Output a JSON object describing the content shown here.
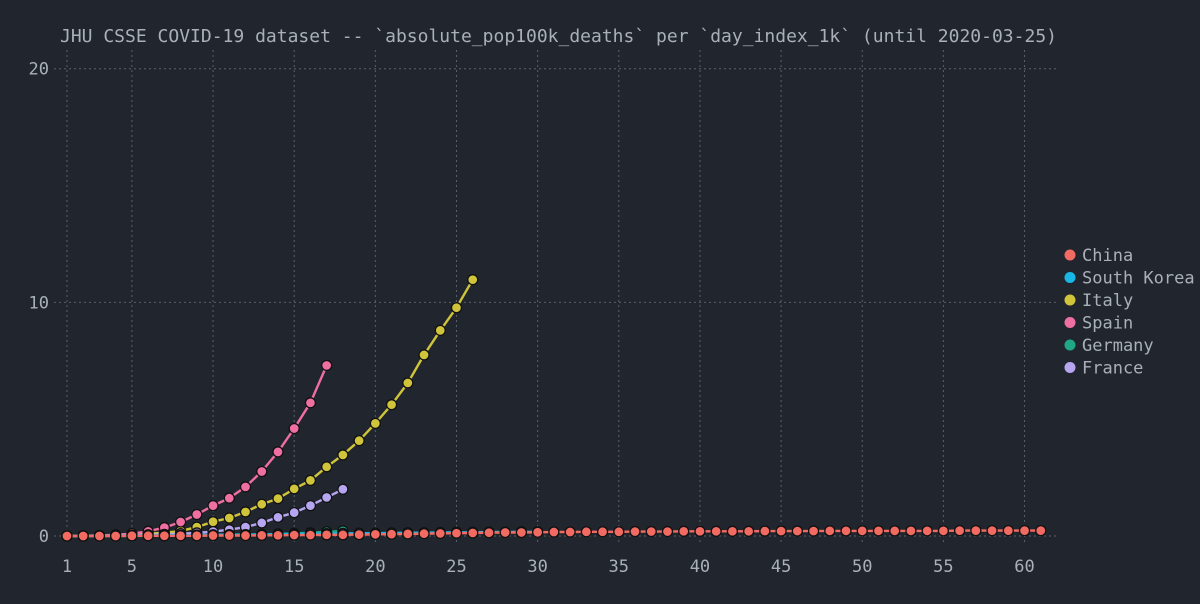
{
  "colors": {
    "background": "#21262e",
    "text": "#a9b0b9",
    "grid": "#5a606a",
    "marker_edge": "#111111"
  },
  "chart_data": {
    "type": "line",
    "title": "JHU CSSE COVID-19 dataset -- `absolute_pop100k_deaths` per `day_index_1k` (until 2020-03-25)",
    "xlabel": "",
    "ylabel": "",
    "xlim": [
      0.2,
      62
    ],
    "ylim": [
      -0.3,
      20.8
    ],
    "xticks": [
      1,
      5,
      10,
      15,
      20,
      25,
      30,
      35,
      40,
      45,
      50,
      55,
      60
    ],
    "yticks": [
      0,
      10,
      20
    ],
    "grid": true,
    "legend_position": "right",
    "series": [
      {
        "name": "Italy",
        "color": "#d0c43a",
        "x": [
          1,
          2,
          3,
          4,
          5,
          6,
          7,
          8,
          9,
          10,
          11,
          12,
          13,
          14,
          15,
          16,
          17,
          18,
          19,
          20,
          21,
          22,
          23,
          24,
          25,
          26
        ],
        "y": [
          0.0,
          0.01,
          0.02,
          0.04,
          0.06,
          0.1,
          0.14,
          0.21,
          0.38,
          0.61,
          0.77,
          1.03,
          1.36,
          1.6,
          2.02,
          2.38,
          2.96,
          3.47,
          4.08,
          4.82,
          5.62,
          6.55,
          7.75,
          8.8,
          9.77,
          10.97
        ]
      },
      {
        "name": "Spain",
        "color": "#ef6fa2",
        "x": [
          1,
          2,
          3,
          4,
          5,
          6,
          7,
          8,
          9,
          10,
          11,
          12,
          13,
          14,
          15,
          16,
          17
        ],
        "y": [
          0.0,
          0.01,
          0.02,
          0.05,
          0.1,
          0.2,
          0.36,
          0.6,
          0.92,
          1.3,
          1.62,
          2.1,
          2.76,
          3.6,
          4.6,
          5.7,
          7.3
        ]
      },
      {
        "name": "France",
        "color": "#b6a6f2",
        "x": [
          1,
          2,
          3,
          4,
          5,
          6,
          7,
          8,
          9,
          10,
          11,
          12,
          13,
          14,
          15,
          16,
          17,
          18
        ],
        "y": [
          0.0,
          0.0,
          0.01,
          0.02,
          0.03,
          0.05,
          0.07,
          0.1,
          0.13,
          0.19,
          0.27,
          0.38,
          0.56,
          0.8,
          1.0,
          1.3,
          1.65,
          2.0
        ]
      },
      {
        "name": "Germany",
        "color": "#1fa888",
        "x": [
          1,
          2,
          3,
          4,
          5,
          6,
          7,
          8,
          9,
          10,
          11,
          12,
          13,
          14,
          15,
          16,
          17,
          18
        ],
        "y": [
          0.0,
          0.0,
          0.0,
          0.0,
          0.0,
          0.01,
          0.01,
          0.02,
          0.02,
          0.03,
          0.04,
          0.05,
          0.07,
          0.09,
          0.11,
          0.14,
          0.18,
          0.22
        ]
      },
      {
        "name": "South Korea",
        "color": "#19b7e6",
        "x": [
          1,
          2,
          3,
          4,
          5,
          6,
          7,
          8,
          9,
          10,
          11,
          12,
          13,
          14,
          15,
          16,
          17,
          18,
          19,
          20,
          21,
          22,
          23,
          24,
          25,
          26,
          27,
          28,
          29,
          30
        ],
        "y": [
          0.0,
          0.0,
          0.01,
          0.01,
          0.02,
          0.02,
          0.03,
          0.03,
          0.04,
          0.05,
          0.06,
          0.06,
          0.07,
          0.08,
          0.09,
          0.1,
          0.1,
          0.11,
          0.12,
          0.12,
          0.13,
          0.14,
          0.14,
          0.15,
          0.16,
          0.16,
          0.17,
          0.17,
          0.18,
          0.18
        ]
      },
      {
        "name": "China",
        "color": "#f26b63",
        "x": [
          1,
          2,
          3,
          4,
          5,
          6,
          7,
          8,
          9,
          10,
          11,
          12,
          13,
          14,
          15,
          16,
          17,
          18,
          19,
          20,
          21,
          22,
          23,
          24,
          25,
          26,
          27,
          28,
          29,
          30,
          31,
          32,
          33,
          34,
          35,
          36,
          37,
          38,
          39,
          40,
          41,
          42,
          43,
          44,
          45,
          46,
          47,
          48,
          49,
          50,
          51,
          52,
          53,
          54,
          55,
          56,
          57,
          58,
          59,
          60,
          61
        ],
        "y": [
          0.0,
          0.0,
          0.0,
          0.0,
          0.01,
          0.01,
          0.01,
          0.01,
          0.01,
          0.02,
          0.02,
          0.02,
          0.03,
          0.03,
          0.04,
          0.04,
          0.05,
          0.05,
          0.06,
          0.07,
          0.08,
          0.09,
          0.1,
          0.11,
          0.12,
          0.13,
          0.14,
          0.15,
          0.15,
          0.16,
          0.17,
          0.17,
          0.18,
          0.18,
          0.18,
          0.19,
          0.19,
          0.19,
          0.2,
          0.2,
          0.2,
          0.2,
          0.2,
          0.21,
          0.21,
          0.21,
          0.21,
          0.22,
          0.22,
          0.22,
          0.22,
          0.22,
          0.22,
          0.22,
          0.22,
          0.23,
          0.23,
          0.23,
          0.23,
          0.23,
          0.23
        ]
      }
    ],
    "legend": [
      "China",
      "South Korea",
      "Italy",
      "Spain",
      "Germany",
      "France"
    ]
  }
}
